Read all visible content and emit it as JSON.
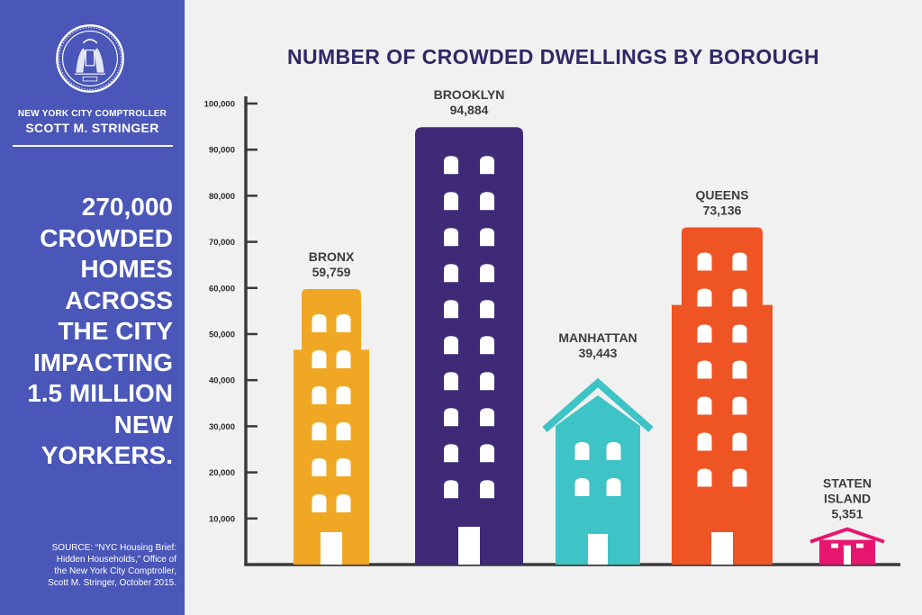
{
  "sidebar": {
    "comptroller_label": "NEW YORK CITY COMPTROLLER",
    "comptroller_name": "SCOTT M. STRINGER",
    "headline_lines": [
      "270,000",
      "CROWDED",
      "HOMES",
      "ACROSS",
      "THE CITY",
      "IMPACTING",
      "1.5 MILLION",
      "NEW",
      "YORKERS."
    ],
    "source_lines": [
      "SOURCE: “NYC Housing Brief:",
      "Hidden Households,” Office of",
      "the New York City Comptroller,",
      "Scott M. Stringer, October 2015."
    ],
    "background_color": "#4a57b8",
    "seal_icon": "nyc-seal-icon"
  },
  "chart_data": {
    "type": "bar",
    "title": "NUMBER OF CROWDED DWELLINGS BY BOROUGH",
    "categories": [
      "BRONX",
      "BROOKLYN",
      "MANHATTAN",
      "QUEENS",
      "STATEN ISLAND"
    ],
    "values": [
      59759,
      94884,
      39443,
      73136,
      5351
    ],
    "value_labels": [
      "59,759",
      "94,884",
      "39,443",
      "73,136",
      "5,351"
    ],
    "colors": [
      "#f0a824",
      "#3e2a77",
      "#3ec3c6",
      "#ee5424",
      "#e6166f"
    ],
    "ylim": [
      0,
      100000
    ],
    "yticks": [
      10000,
      20000,
      30000,
      40000,
      50000,
      60000,
      70000,
      80000,
      90000,
      100000
    ],
    "ytick_labels": [
      "10,000",
      "20,000",
      "30,000",
      "40,000",
      "50,000",
      "60,000",
      "70,000",
      "80,000",
      "90,000",
      "100,000"
    ],
    "xlabel": "",
    "ylabel": "",
    "grid": false,
    "legend": "none",
    "axis_color": "#3a3a3a",
    "title_color": "#2f2966"
  }
}
